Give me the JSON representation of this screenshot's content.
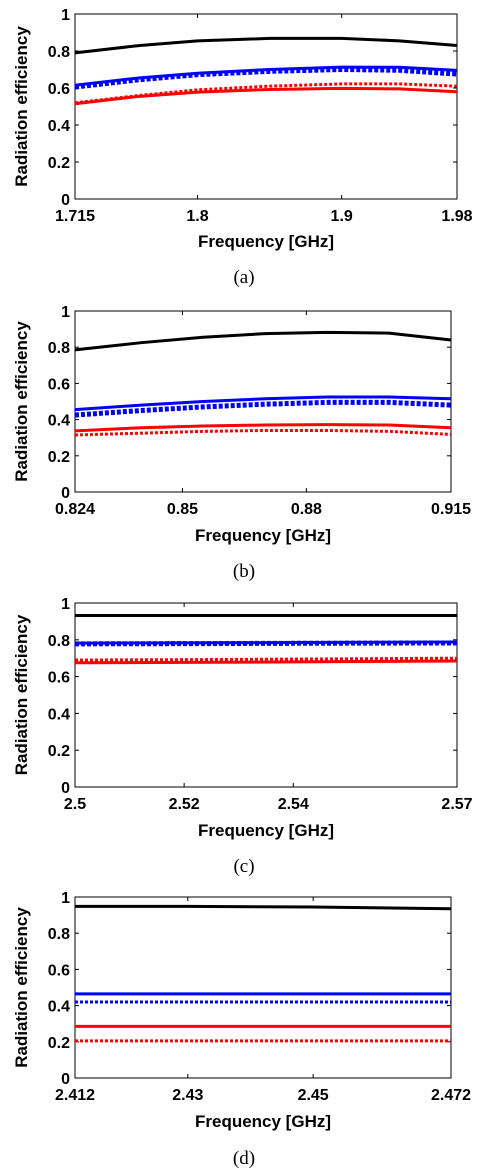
{
  "colors": {
    "black": "#000000",
    "blue": "#0000ff",
    "red": "#ff0000"
  },
  "chart_data": [
    {
      "type": "line",
      "caption": "(a)",
      "xlabel": "Frequency [GHz]",
      "ylabel": "Radiation efficiency",
      "xlim": [
        1.715,
        1.98
      ],
      "ylim": [
        0,
        1
      ],
      "xticks": [
        1.715,
        1.8,
        1.9,
        1.98
      ],
      "xtick_labels": [
        "1.715",
        "1.8",
        "1.9",
        "1.98"
      ],
      "yticks": [
        0,
        0.2,
        0.4,
        0.6,
        0.8,
        1
      ],
      "ytick_labels": [
        "0",
        "0.2",
        "0.4",
        "0.6",
        "0.8",
        "1"
      ],
      "x": [
        1.715,
        1.76,
        1.8,
        1.85,
        1.9,
        1.94,
        1.98
      ],
      "series": [
        {
          "color": "black",
          "style": "solid",
          "width": 3,
          "values": [
            0.79,
            0.83,
            0.855,
            0.868,
            0.868,
            0.855,
            0.83
          ]
        },
        {
          "color": "blue",
          "style": "solid",
          "width": 3,
          "values": [
            0.615,
            0.655,
            0.68,
            0.7,
            0.713,
            0.712,
            0.695
          ]
        },
        {
          "color": "blue",
          "style": "dotted",
          "width": 5,
          "values": [
            0.605,
            0.645,
            0.672,
            0.69,
            0.7,
            0.696,
            0.675
          ]
        },
        {
          "color": "red",
          "style": "solid",
          "width": 3,
          "values": [
            0.515,
            0.555,
            0.578,
            0.592,
            0.598,
            0.595,
            0.58
          ]
        },
        {
          "color": "red",
          "style": "dotted",
          "width": 3,
          "values": [
            0.52,
            0.56,
            0.59,
            0.61,
            0.622,
            0.622,
            0.61
          ]
        }
      ]
    },
    {
      "type": "line",
      "caption": "(b)",
      "xlabel": "Frequency [GHz]",
      "ylabel": "Radiation efficiency",
      "xlim": [
        0.824,
        0.915
      ],
      "ylim": [
        0,
        1
      ],
      "xticks": [
        0.824,
        0.85,
        0.88,
        0.915
      ],
      "xtick_labels": [
        "0.824",
        "0.85",
        "0.88",
        "0.915"
      ],
      "yticks": [
        0,
        0.2,
        0.4,
        0.6,
        0.8,
        1
      ],
      "ytick_labels": [
        "0",
        "0.2",
        "0.4",
        "0.6",
        "0.8",
        "1"
      ],
      "x": [
        0.824,
        0.84,
        0.855,
        0.87,
        0.885,
        0.9,
        0.915
      ],
      "series": [
        {
          "color": "black",
          "style": "solid",
          "width": 3,
          "values": [
            0.785,
            0.825,
            0.855,
            0.875,
            0.882,
            0.878,
            0.84
          ]
        },
        {
          "color": "blue",
          "style": "solid",
          "width": 3,
          "values": [
            0.455,
            0.48,
            0.5,
            0.515,
            0.525,
            0.525,
            0.515
          ]
        },
        {
          "color": "blue",
          "style": "dotted",
          "width": 5,
          "values": [
            0.425,
            0.45,
            0.47,
            0.485,
            0.495,
            0.495,
            0.48
          ]
        },
        {
          "color": "red",
          "style": "solid",
          "width": 3,
          "values": [
            0.338,
            0.355,
            0.365,
            0.37,
            0.372,
            0.37,
            0.355
          ]
        },
        {
          "color": "red",
          "style": "dotted",
          "width": 3,
          "values": [
            0.315,
            0.325,
            0.335,
            0.34,
            0.34,
            0.335,
            0.318
          ]
        }
      ]
    },
    {
      "type": "line",
      "caption": "(c)",
      "xlabel": "Frequency [GHz]",
      "ylabel": "Radiation efficiency",
      "xlim": [
        2.5,
        2.57
      ],
      "ylim": [
        0,
        1
      ],
      "xticks": [
        2.5,
        2.52,
        2.54,
        2.57
      ],
      "xtick_labels": [
        "2.5",
        "2.52",
        "2.54",
        "2.57"
      ],
      "yticks": [
        0,
        0.2,
        0.4,
        0.6,
        0.8,
        1
      ],
      "ytick_labels": [
        "0",
        "0.2",
        "0.4",
        "0.6",
        "0.8",
        "1"
      ],
      "x": [
        2.5,
        2.52,
        2.54,
        2.57
      ],
      "series": [
        {
          "color": "black",
          "style": "solid",
          "width": 3,
          "values": [
            0.932,
            0.932,
            0.932,
            0.932
          ]
        },
        {
          "color": "blue",
          "style": "solid",
          "width": 3,
          "values": [
            0.782,
            0.783,
            0.785,
            0.788
          ]
        },
        {
          "color": "blue",
          "style": "dotted",
          "width": 5,
          "values": [
            0.778,
            0.779,
            0.781,
            0.783
          ]
        },
        {
          "color": "red",
          "style": "solid",
          "width": 3,
          "values": [
            0.675,
            0.677,
            0.68,
            0.685
          ]
        },
        {
          "color": "red",
          "style": "dotted",
          "width": 3,
          "values": [
            0.69,
            0.692,
            0.695,
            0.7
          ]
        }
      ]
    },
    {
      "type": "line",
      "caption": "(d)",
      "xlabel": "Frequency [GHz]",
      "ylabel": "Radiation efficiency",
      "xlim": [
        2.412,
        2.472
      ],
      "ylim": [
        0,
        1
      ],
      "xticks": [
        2.412,
        2.43,
        2.45,
        2.472
      ],
      "xtick_labels": [
        "2.412",
        "2.43",
        "2.45",
        "2.472"
      ],
      "yticks": [
        0,
        0.2,
        0.4,
        0.6,
        0.8,
        1
      ],
      "ytick_labels": [
        "0",
        "0.2",
        "0.4",
        "0.6",
        "0.8",
        "1"
      ],
      "x": [
        2.412,
        2.43,
        2.45,
        2.472
      ],
      "series": [
        {
          "color": "black",
          "style": "solid",
          "width": 3,
          "values": [
            0.948,
            0.948,
            0.945,
            0.935
          ]
        },
        {
          "color": "blue",
          "style": "solid",
          "width": 3,
          "values": [
            0.465,
            0.465,
            0.465,
            0.465
          ]
        },
        {
          "color": "blue",
          "style": "dotted",
          "width": 3,
          "values": [
            0.42,
            0.42,
            0.42,
            0.42
          ]
        },
        {
          "color": "red",
          "style": "solid",
          "width": 3,
          "values": [
            0.285,
            0.285,
            0.285,
            0.285
          ]
        },
        {
          "color": "red",
          "style": "dotted",
          "width": 3,
          "values": [
            0.205,
            0.205,
            0.205,
            0.205
          ]
        }
      ]
    }
  ]
}
